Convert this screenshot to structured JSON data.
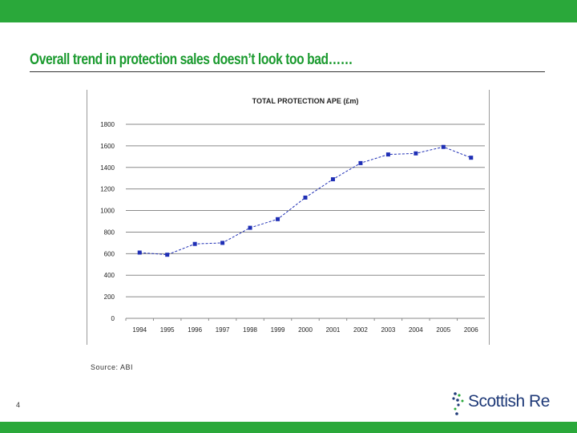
{
  "slide": {
    "title": "Overall trend in protection sales doesn’t look too bad……",
    "source": "Source: ABI",
    "page_number": "4",
    "logo_text": "Scottish Re",
    "colors": {
      "bar": "#2aa83a",
      "title": "#1a9a2e",
      "series": "#1f2fb5",
      "logo": "#1f3a78"
    }
  },
  "chart_data": {
    "type": "line",
    "title": "TOTAL PROTECTION APE (£m)",
    "xlabel": "",
    "ylabel": "",
    "categories": [
      "1994",
      "1995",
      "1996",
      "1997",
      "1998",
      "1999",
      "2000",
      "2001",
      "2002",
      "2003",
      "2004",
      "2005",
      "2006"
    ],
    "y_ticks": [
      0,
      200,
      400,
      600,
      800,
      1000,
      1200,
      1400,
      1600,
      1800
    ],
    "y_tick_labels": [
      "0",
      "200",
      "400",
      "600",
      "800",
      "1000",
      "1200",
      "1400",
      "1600",
      "1800"
    ],
    "ylim": [
      0,
      1800
    ],
    "grid": true,
    "legend": "none",
    "series": [
      {
        "values": [
          610,
          590,
          690,
          700,
          840,
          920,
          1120,
          1290,
          1440,
          1520,
          1530,
          1590,
          1490
        ]
      }
    ]
  }
}
